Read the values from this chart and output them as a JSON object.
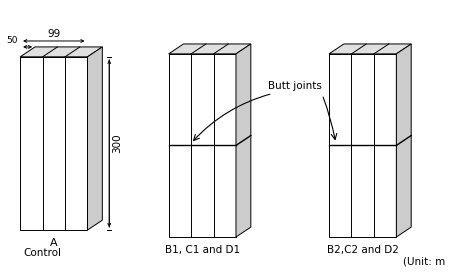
{
  "bg_color": "#ffffff",
  "line_color": "#000000",
  "label_A": "A",
  "label_control": "Control",
  "label_B1": "B1, C1 and D1",
  "label_B2": "B2,C2 and D2",
  "label_unit": "(Unit: m",
  "label_butt": "Butt joints",
  "dim_width": "99",
  "dim_depth": "50",
  "dim_height": "300",
  "font_size": 7.5,
  "top_face_color": "#e0e0e0",
  "right_face_color": "#cccccc",
  "front_face_color": "#ffffff"
}
